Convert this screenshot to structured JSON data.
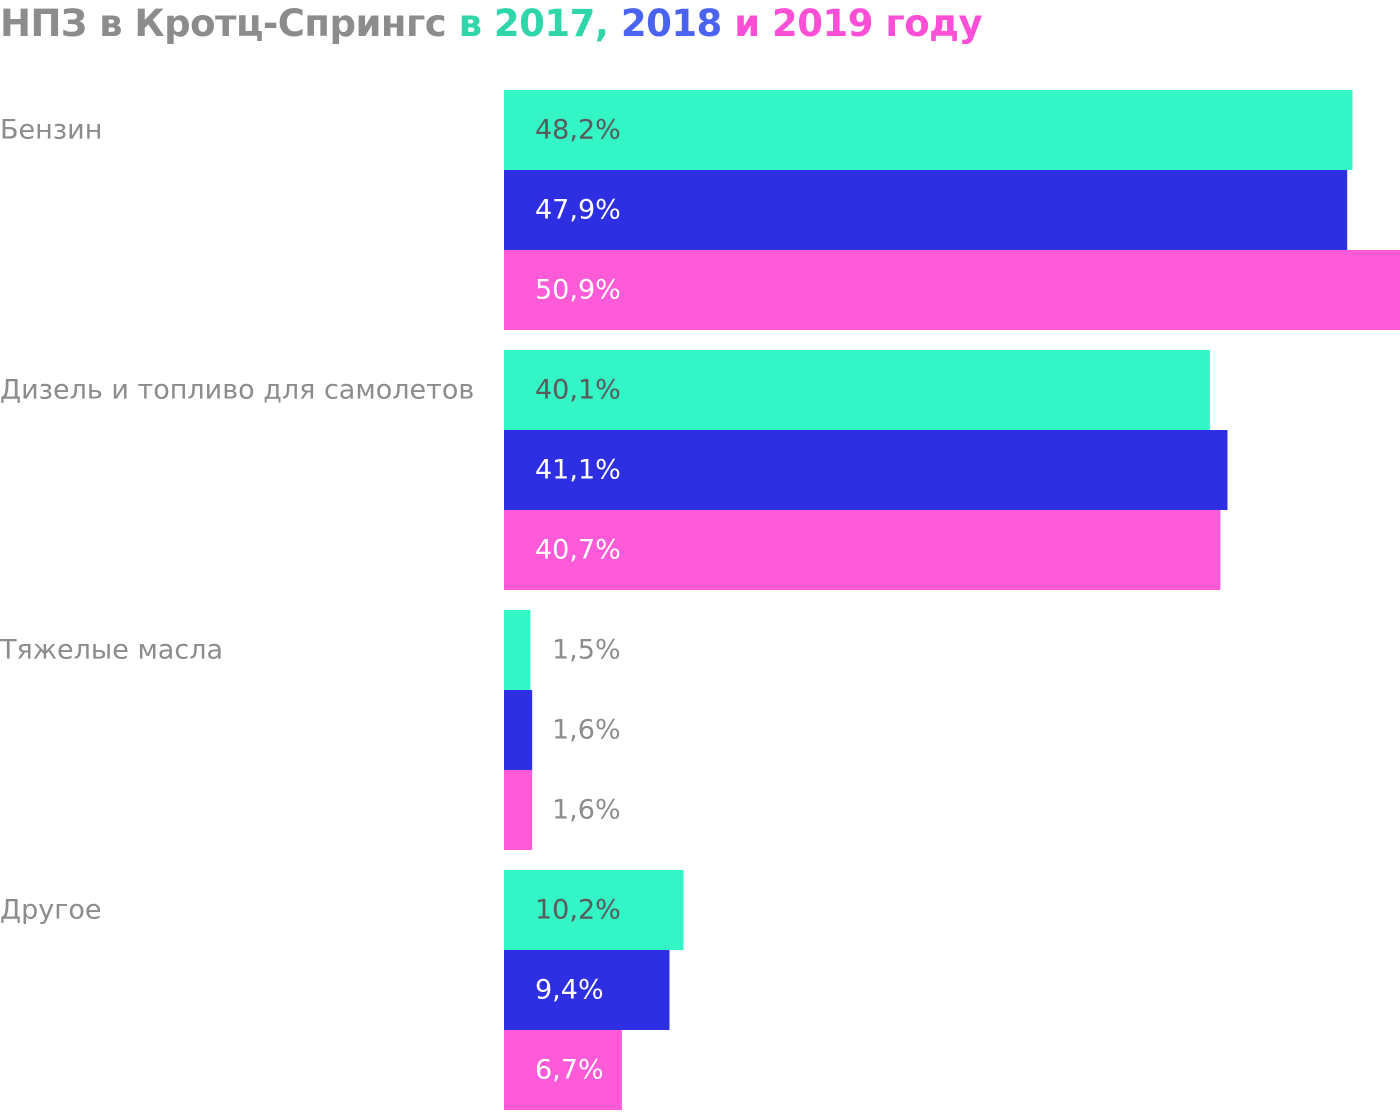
{
  "title_parts": [
    {
      "text": "НПЗ в Кротц-Спрингс ",
      "color": "#8c8c8c"
    },
    {
      "text": "в 2017, ",
      "color": "#2fd6a9"
    },
    {
      "text": "2018",
      "color": "#4a63f0"
    },
    {
      "text": " и 2019 году",
      "color": "#ff4fd6"
    }
  ],
  "chart_data": {
    "type": "bar",
    "orientation": "horizontal",
    "title": "НПЗ в Кротц-Спрингс в 2017, 2018 и 2019 году",
    "categories": [
      "Бензин",
      "Дизель и топливо для самолетов",
      "Тяжелые масла",
      "Другое"
    ],
    "series": [
      {
        "name": "2017",
        "color": "#33f5c5",
        "values": [
          48.2,
          40.1,
          1.5,
          10.2
        ],
        "labels": [
          "48,2%",
          "40,1%",
          "1,5%",
          "10,2%"
        ]
      },
      {
        "name": "2018",
        "color": "#2e2ee3",
        "values": [
          47.9,
          41.1,
          1.6,
          9.4
        ],
        "labels": [
          "47,9%",
          "41,1%",
          "1,6%",
          "9,4%"
        ]
      },
      {
        "name": "2019",
        "color": "#ff5bd8",
        "values": [
          50.9,
          40.7,
          1.6,
          6.7
        ],
        "labels": [
          "50,9%",
          "40,7%",
          "1,6%",
          "6,7%"
        ]
      }
    ],
    "xlim": [
      0,
      50.9
    ],
    "grid": false,
    "legend": "title"
  }
}
